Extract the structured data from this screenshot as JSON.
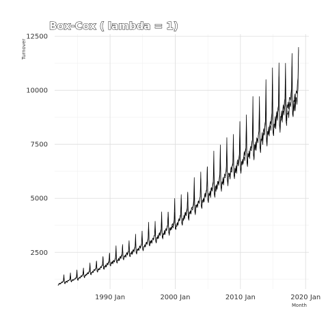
{
  "chart_data": {
    "type": "line",
    "title": "Box-Cox ( lambda = 1)",
    "xlabel": "Month",
    "ylabel": "Turnover",
    "xlim": [
      1981.5,
      2020.5
    ],
    "ylim": [
      800,
      12600
    ],
    "x_ticks": [
      {
        "value": 1990,
        "label": "1990 Jan"
      },
      {
        "value": 2000,
        "label": "2000 Jan"
      },
      {
        "value": 2010,
        "label": "2010 Jan"
      },
      {
        "value": 2020,
        "label": "2020 Jan"
      }
    ],
    "y_ticks": [
      {
        "value": 2500,
        "label": "2500"
      },
      {
        "value": 5000,
        "label": "5000"
      },
      {
        "value": 7500,
        "label": "7500"
      },
      {
        "value": 10000,
        "label": "10000"
      },
      {
        "value": 12500,
        "label": "12500"
      }
    ],
    "series": [
      {
        "trend": {
          "x": [
            1982,
            1985,
            1990,
            1995,
            2000,
            2005,
            2010,
            2015,
            2018.9
          ],
          "y": [
            1050,
            1300,
            2000,
            2800,
            3800,
            5200,
            6700,
            8500,
            9700
          ]
        },
        "december_peak_factor": [
          1.15,
          1.25
        ],
        "seasonal_amplitude": 0.045,
        "noise_amplitude": 0.012
      },
      {
        "trend": {
          "x": [
            1982,
            1985,
            1990,
            1995,
            2000,
            2005,
            2010,
            2015,
            2018.9
          ],
          "y": [
            1060,
            1320,
            2030,
            2820,
            3860,
            5280,
            6800,
            8650,
            10100
          ]
        },
        "december_peak_factor": [
          1.2,
          1.3
        ],
        "seasonal_amplitude": 0.05,
        "noise_amplitude": 0.012
      }
    ],
    "final_point": {
      "x": 2018.92,
      "y": 12000
    },
    "grid": true,
    "legend": "none"
  }
}
